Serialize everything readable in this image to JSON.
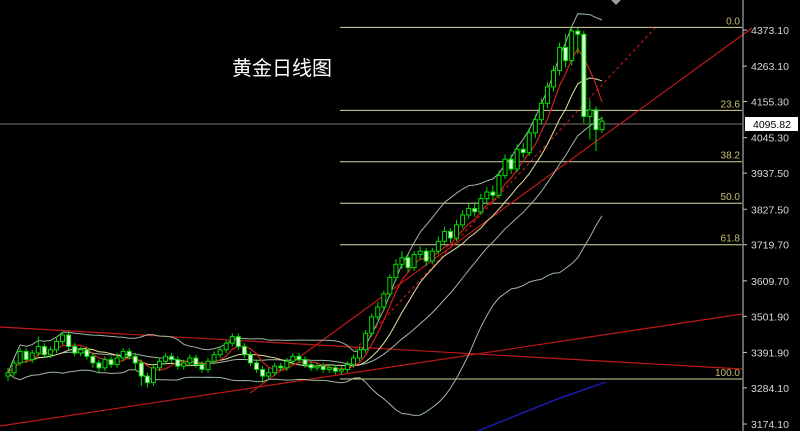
{
  "title": "黄金日线图",
  "chart_data": {
    "type": "candlestick",
    "title": "黄金日线图",
    "ylim": [
      3174.1,
      4373.1
    ],
    "y_ticks": [
      "4373.10",
      "4263.10",
      "4155.30",
      "4045.30",
      "3937.50",
      "3827.50",
      "3719.70",
      "3609.70",
      "3501.90",
      "3391.90",
      "3284.10",
      "3174.10"
    ],
    "current_price": "4095.82",
    "fibonacci": {
      "high": 4381,
      "low": 3311,
      "levels": [
        {
          "label": "0.0",
          "ratio": 0
        },
        {
          "label": "23.6",
          "ratio": 0.236
        },
        {
          "label": "38.2",
          "ratio": 0.382
        },
        {
          "label": "50.0",
          "ratio": 0.5
        },
        {
          "label": "61.8",
          "ratio": 0.618
        },
        {
          "label": "100.0",
          "ratio": 1
        }
      ]
    },
    "indicators": [
      "MA5",
      "MA10",
      "Bollinger(20,2)"
    ],
    "colors": {
      "up": "#00e000",
      "down_fill": "#d8ffd0",
      "ma_fast": "#d02020",
      "ma_slow": "#e8e0a0",
      "bollinger": "#a0b8a0",
      "fib": "#d8d8a0",
      "trendline": "#c01818",
      "current_line": "#808080"
    },
    "open": [
      3320,
      3330,
      3360,
      3395,
      3370,
      3390,
      3410,
      3385,
      3400,
      3425,
      3445,
      3410,
      3390,
      3400,
      3380,
      3360,
      3345,
      3370,
      3355,
      3375,
      3395,
      3380,
      3360,
      3320,
      3300,
      3345,
      3365,
      3380,
      3370,
      3350,
      3360,
      3375,
      3355,
      3340,
      3365,
      3385,
      3400,
      3420,
      3440,
      3410,
      3385,
      3360,
      3340,
      3320,
      3330,
      3350,
      3345,
      3365,
      3380,
      3370,
      3355,
      3345,
      3350,
      3340,
      3345,
      3335,
      3340,
      3355,
      3375,
      3400,
      3450,
      3500,
      3530,
      3570,
      3620,
      3660,
      3680,
      3650,
      3690,
      3700,
      3670,
      3700,
      3730,
      3760,
      3740,
      3780,
      3810,
      3830,
      3820,
      3860,
      3880,
      3870,
      3930,
      3980,
      3950,
      4010,
      4000,
      4060,
      4100,
      4150,
      4200,
      4250,
      4320,
      4280,
      4370,
      4360,
      4110,
      4130,
      4070
    ],
    "high": [
      3345,
      3370,
      3405,
      3405,
      3400,
      3440,
      3420,
      3410,
      3440,
      3455,
      3455,
      3420,
      3410,
      3410,
      3390,
      3370,
      3380,
      3380,
      3390,
      3405,
      3405,
      3390,
      3370,
      3330,
      3355,
      3375,
      3390,
      3390,
      3380,
      3370,
      3385,
      3385,
      3365,
      3375,
      3395,
      3410,
      3430,
      3450,
      3450,
      3420,
      3395,
      3370,
      3350,
      3345,
      3360,
      3360,
      3375,
      3390,
      3390,
      3380,
      3365,
      3360,
      3360,
      3355,
      3355,
      3350,
      3365,
      3385,
      3410,
      3460,
      3510,
      3545,
      3580,
      3630,
      3675,
      3700,
      3690,
      3700,
      3715,
      3710,
      3710,
      3745,
      3775,
      3770,
      3795,
      3825,
      3845,
      3850,
      3875,
      3895,
      3900,
      3945,
      3995,
      3995,
      4025,
      4030,
      4075,
      4115,
      4165,
      4215,
      4265,
      4335,
      4360,
      4381,
      4379,
      4370,
      4160,
      4140,
      4110
    ],
    "low": [
      3305,
      3320,
      3350,
      3360,
      3360,
      3380,
      3375,
      3375,
      3390,
      3415,
      3400,
      3380,
      3380,
      3370,
      3345,
      3330,
      3335,
      3345,
      3345,
      3365,
      3370,
      3340,
      3290,
      3285,
      3290,
      3335,
      3355,
      3360,
      3340,
      3340,
      3350,
      3345,
      3330,
      3330,
      3355,
      3375,
      3390,
      3410,
      3400,
      3375,
      3350,
      3330,
      3300,
      3310,
      3320,
      3335,
      3335,
      3355,
      3360,
      3345,
      3335,
      3335,
      3330,
      3330,
      3325,
      3325,
      3330,
      3345,
      3365,
      3390,
      3440,
      3490,
      3520,
      3560,
      3610,
      3645,
      3635,
      3640,
      3675,
      3655,
      3660,
      3690,
      3720,
      3725,
      3730,
      3770,
      3800,
      3805,
      3810,
      3845,
      3855,
      3860,
      3920,
      3935,
      3940,
      3985,
      3990,
      4045,
      4085,
      4135,
      4185,
      4235,
      4260,
      4265,
      4300,
      4090,
      4040,
      4005,
      4060
    ],
    "close": [
      3330,
      3360,
      3395,
      3370,
      3390,
      3410,
      3385,
      3400,
      3425,
      3445,
      3410,
      3390,
      3400,
      3380,
      3360,
      3345,
      3370,
      3355,
      3375,
      3395,
      3380,
      3360,
      3320,
      3300,
      3345,
      3365,
      3380,
      3370,
      3350,
      3360,
      3375,
      3355,
      3340,
      3365,
      3385,
      3400,
      3420,
      3440,
      3410,
      3385,
      3360,
      3340,
      3320,
      3330,
      3350,
      3345,
      3365,
      3380,
      3370,
      3355,
      3345,
      3350,
      3340,
      3345,
      3335,
      3340,
      3355,
      3375,
      3400,
      3450,
      3500,
      3530,
      3570,
      3620,
      3660,
      3680,
      3650,
      3690,
      3700,
      3670,
      3700,
      3730,
      3760,
      3740,
      3780,
      3810,
      3830,
      3820,
      3860,
      3880,
      3870,
      3930,
      3980,
      3950,
      4010,
      4000,
      4060,
      4100,
      4150,
      4200,
      4250,
      4320,
      4280,
      4370,
      4360,
      4110,
      4130,
      4070,
      4095.82
    ]
  }
}
